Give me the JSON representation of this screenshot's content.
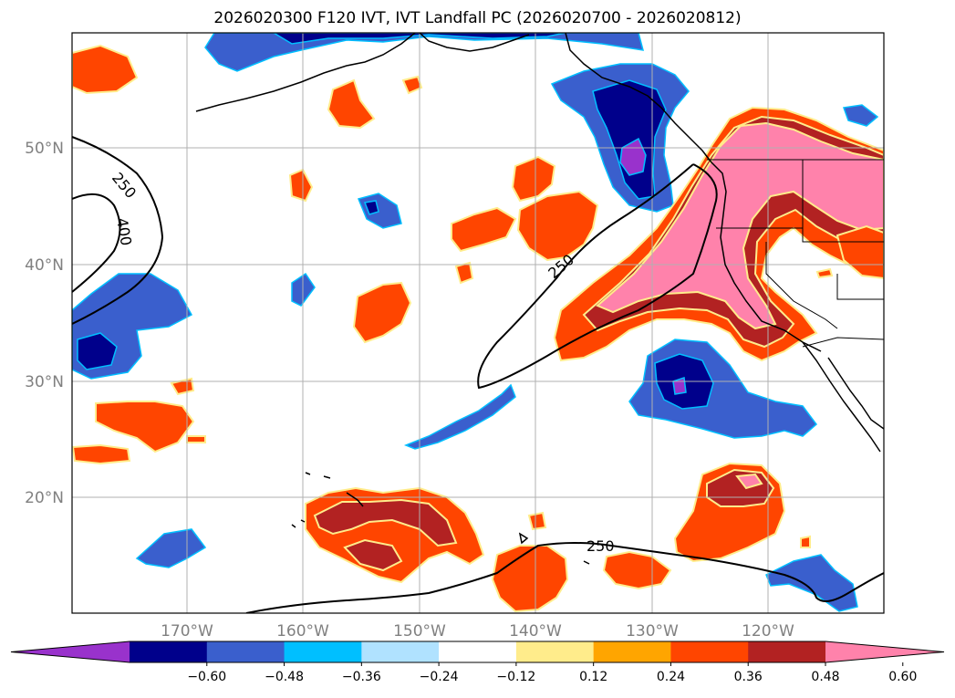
{
  "title": "2026020300 F120 IVT, IVT Landfall PC (2026020700 - 2026020812)",
  "lat_labels": [
    "50°N",
    "40°N",
    "30°N",
    "20°N"
  ],
  "lon_labels": [
    "170°W",
    "160°W",
    "150°W",
    "140°W",
    "130°W",
    "120°W"
  ],
  "contour_labels": [
    "250",
    "400",
    "250",
    "250"
  ],
  "colorbar": {
    "ticks": [
      "−0.60",
      "−0.48",
      "−0.36",
      "−0.24",
      "−0.12",
      "0.12",
      "0.24",
      "0.36",
      "0.48",
      "0.60"
    ],
    "colors": [
      "#9932cc",
      "#00008b",
      "#3a5fcd",
      "#00bfff",
      "#b0e2ff",
      "#ffffff",
      "#ffec8b",
      "#ffa500",
      "#ff4500",
      "#b22222",
      "#ff82ab"
    ]
  },
  "colors": {
    "land_outline": "#000000",
    "grid": "#b0b0b0"
  }
}
